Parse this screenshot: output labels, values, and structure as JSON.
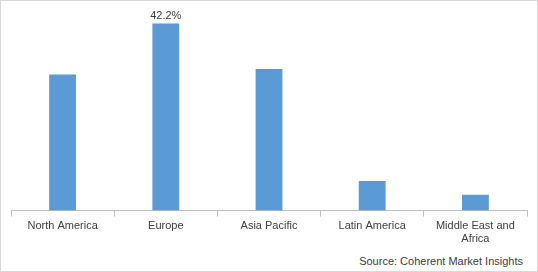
{
  "chart_data": {
    "type": "bar",
    "categories": [
      "North America",
      "Europe",
      "Asia Pacific",
      "Latin America",
      "Middle East and Africa"
    ],
    "values": [
      30.7,
      42.2,
      31.9,
      6.7,
      3.6
    ],
    "value_labels": [
      null,
      "42.2%",
      null,
      null,
      null
    ],
    "data_labels": true,
    "color": "#5b9bd5",
    "ylim": [
      0,
      45
    ],
    "grid": false,
    "tick_labels": "x",
    "source": "Source: Coherent Market Insights"
  }
}
